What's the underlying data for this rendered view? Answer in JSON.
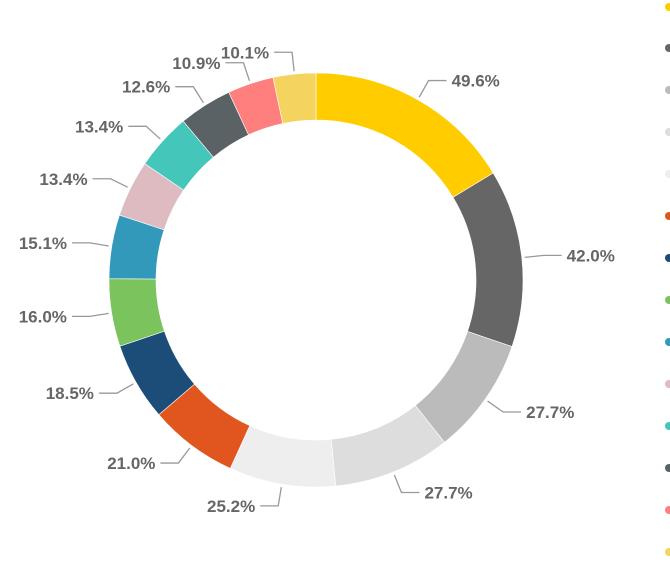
{
  "chart_data": {
    "type": "pie",
    "variant": "donut",
    "slices": [
      {
        "label": "49.6%",
        "value": 49.6,
        "color": "#FFCC00"
      },
      {
        "label": "42.0%",
        "value": 42.0,
        "color": "#666666"
      },
      {
        "label": "27.7%",
        "value": 27.7,
        "color": "#BBBBBB"
      },
      {
        "label": "27.7%",
        "value": 27.7,
        "color": "#DDDDDD"
      },
      {
        "label": "25.2%",
        "value": 25.2,
        "color": "#EEEEEE"
      },
      {
        "label": "21.0%",
        "value": 21.0,
        "color": "#E0561E"
      },
      {
        "label": "18.5%",
        "value": 18.5,
        "color": "#1C4C78"
      },
      {
        "label": "16.0%",
        "value": 16.0,
        "color": "#7BC35C"
      },
      {
        "label": "15.1%",
        "value": 15.1,
        "color": "#3399BB"
      },
      {
        "label": "13.4%",
        "value": 13.4,
        "color": "#DDBBC0"
      },
      {
        "label": "13.4%",
        "value": 13.4,
        "color": "#44C6BA"
      },
      {
        "label": "12.6%",
        "value": 12.6,
        "color": "#5A6266"
      },
      {
        "label": "10.9%",
        "value": 10.9,
        "color": "#FF7F7F"
      },
      {
        "label": "10.1%",
        "value": 10.1,
        "color": "#F4D35E"
      }
    ],
    "legend": {
      "placement": "right (cropped, markers only)",
      "marker_colors": [
        "#FFCC00",
        "#666666",
        "#BBBBBB",
        "#DDDDDD",
        "#EEEEEE",
        "#E0561E",
        "#1C4C78",
        "#7BC35C",
        "#3399BB",
        "#DDBBC0",
        "#44C6BA",
        "#5A6266",
        "#FF7F7F",
        "#F4D35E"
      ]
    }
  }
}
